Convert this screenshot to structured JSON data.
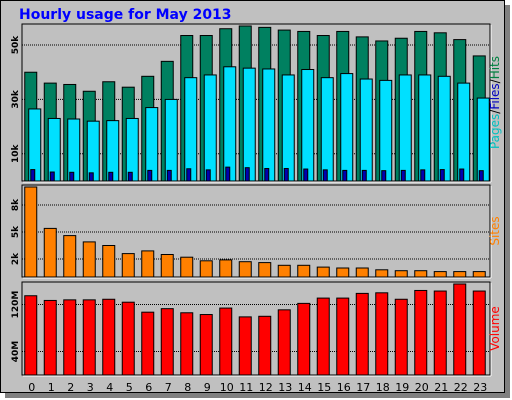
{
  "chart_data": [
    {
      "type": "bar",
      "title": "Hourly usage for May 2013",
      "categories": [
        "0",
        "1",
        "2",
        "3",
        "4",
        "5",
        "6",
        "7",
        "8",
        "9",
        "10",
        "11",
        "12",
        "13",
        "14",
        "15",
        "16",
        "17",
        "18",
        "19",
        "20",
        "21",
        "22",
        "23"
      ],
      "ylabel_parts": [
        "Pages",
        "/",
        "Files",
        "/",
        "Hits"
      ],
      "ylabel_colors": [
        "#00c0c0",
        "#000000",
        "#0000c0",
        "#000000",
        "#008040"
      ],
      "yticks": [
        {
          "value": 10000,
          "label": "10k"
        },
        {
          "value": 30000,
          "label": "30k"
        },
        {
          "value": 50000,
          "label": "50k"
        }
      ],
      "ylim": [
        0,
        57000
      ],
      "series": [
        {
          "name": "Hits",
          "color": "#008060",
          "values": [
            40000,
            36000,
            35500,
            33000,
            36500,
            34500,
            38500,
            44000,
            53500,
            53500,
            56000,
            57000,
            56500,
            55500,
            55000,
            53500,
            55000,
            53000,
            51500,
            52500,
            55000,
            54500,
            52000,
            46000
          ]
        },
        {
          "name": "Files",
          "color": "#00e0ff",
          "values": [
            26500,
            23000,
            22800,
            22000,
            22200,
            23000,
            27000,
            30000,
            38000,
            39000,
            42000,
            41500,
            41200,
            39000,
            41000,
            38000,
            39500,
            37500,
            37000,
            39000,
            39000,
            38500,
            36000,
            30500
          ]
        },
        {
          "name": "Pages",
          "color": "#0000b0",
          "values": [
            4200,
            3300,
            3200,
            3000,
            3200,
            3200,
            3900,
            3900,
            4500,
            4100,
            5100,
            4900,
            4600,
            4600,
            4400,
            4100,
            3900,
            3900,
            3800,
            3900,
            4100,
            4200,
            4400,
            3800
          ]
        }
      ]
    },
    {
      "type": "bar",
      "categories": [
        "0",
        "1",
        "2",
        "3",
        "4",
        "5",
        "6",
        "7",
        "8",
        "9",
        "10",
        "11",
        "12",
        "13",
        "14",
        "15",
        "16",
        "17",
        "18",
        "19",
        "20",
        "21",
        "22",
        "23"
      ],
      "ylabel": "Sites",
      "ylabel_color": "#ff8000",
      "yticks": [
        {
          "value": 2000,
          "label": "2k"
        },
        {
          "value": 5000,
          "label": "5k"
        },
        {
          "value": 8000,
          "label": "8k"
        }
      ],
      "ylim": [
        0,
        10000
      ],
      "series": [
        {
          "name": "Sites",
          "color": "#ff8000",
          "values": [
            10000,
            5400,
            4600,
            3900,
            3500,
            2600,
            2900,
            2500,
            2200,
            1800,
            1900,
            1700,
            1600,
            1300,
            1300,
            1100,
            1000,
            1000,
            800,
            700,
            700,
            600,
            600,
            600
          ]
        }
      ]
    },
    {
      "type": "bar",
      "categories": [
        "0",
        "1",
        "2",
        "3",
        "4",
        "5",
        "6",
        "7",
        "8",
        "9",
        "10",
        "11",
        "12",
        "13",
        "14",
        "15",
        "16",
        "17",
        "18",
        "19",
        "20",
        "21",
        "22",
        "23"
      ],
      "ylabel": "Volume",
      "ylabel_color": "#ff0000",
      "yticks": [
        {
          "value": 40,
          "label": "40M"
        },
        {
          "value": 120,
          "label": "120M"
        }
      ],
      "ylim": [
        0,
        155
      ],
      "series": [
        {
          "name": "Volume",
          "color": "#ff0000",
          "values": [
            135,
            127,
            128,
            128,
            129,
            124,
            107,
            113,
            106,
            103,
            114,
            99,
            100,
            111,
            122,
            131,
            131,
            139,
            140,
            129,
            144,
            143,
            155,
            143
          ]
        }
      ]
    }
  ]
}
